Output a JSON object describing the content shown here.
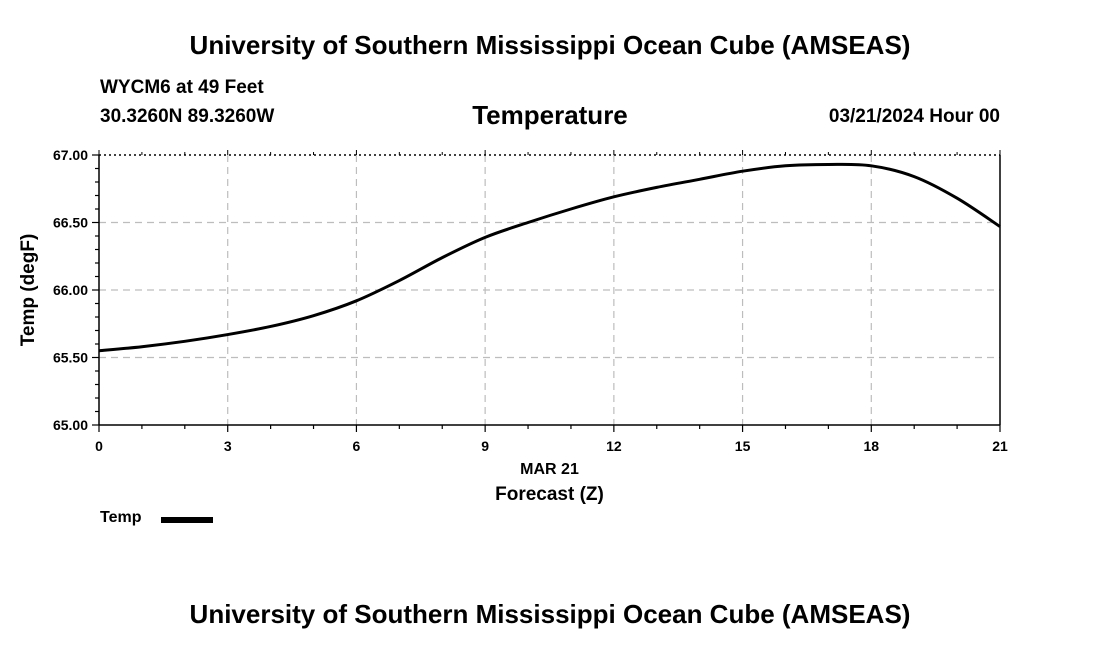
{
  "header": {
    "title": "University of Southern Mississippi Ocean Cube (AMSEAS)",
    "station": "WYCM6 at 49 Feet",
    "coords": "30.3260N  89.3260W",
    "variable": "Temperature",
    "datetime": "03/21/2024 Hour 00"
  },
  "footer": {
    "title": "University of Southern Mississippi Ocean Cube (AMSEAS)"
  },
  "chart_data": {
    "type": "line",
    "title": "Temperature",
    "xlabel": "Forecast (Z)",
    "xsublabel": "MAR 21",
    "ylabel": "Temp (degF)",
    "xlim": [
      0,
      21
    ],
    "ylim": [
      65.0,
      67.0
    ],
    "xticks": [
      0,
      3,
      6,
      9,
      12,
      15,
      18,
      21
    ],
    "yticks": [
      65.0,
      65.5,
      66.0,
      66.5,
      67.0
    ],
    "ytick_labels": [
      "65.00",
      "65.50",
      "66.00",
      "66.50",
      "67.00"
    ],
    "grid": true,
    "legend_position": "bottom-left",
    "series": [
      {
        "name": "Temp",
        "color": "#000000",
        "x": [
          0,
          1,
          2,
          3,
          4,
          5,
          6,
          7,
          8,
          9,
          10,
          11,
          12,
          13,
          14,
          15,
          16,
          17,
          18,
          19,
          20,
          21
        ],
        "values": [
          65.55,
          65.58,
          65.62,
          65.67,
          65.73,
          65.81,
          65.92,
          66.07,
          66.24,
          66.39,
          66.5,
          66.6,
          66.69,
          66.76,
          66.82,
          66.88,
          66.92,
          66.93,
          66.92,
          66.84,
          66.68,
          66.47
        ]
      }
    ]
  }
}
